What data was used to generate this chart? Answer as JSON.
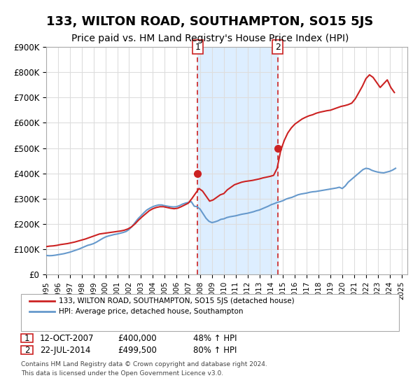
{
  "title": "133, WILTON ROAD, SOUTHAMPTON, SO15 5JS",
  "subtitle": "Price paid vs. HM Land Registry's House Price Index (HPI)",
  "title_fontsize": 13,
  "subtitle_fontsize": 10,
  "xlabel": "",
  "ylabel": "",
  "ylim": [
    0,
    900000
  ],
  "yticks": [
    0,
    100000,
    200000,
    300000,
    400000,
    500000,
    600000,
    700000,
    800000,
    900000
  ],
  "ytick_labels": [
    "£0",
    "£100K",
    "£200K",
    "£300K",
    "£400K",
    "£500K",
    "£600K",
    "£700K",
    "£800K",
    "£900K"
  ],
  "xlim_start": 1995.0,
  "xlim_end": 2025.5,
  "xtick_years": [
    1995,
    1996,
    1997,
    1998,
    1999,
    2000,
    2001,
    2002,
    2003,
    2004,
    2005,
    2006,
    2007,
    2008,
    2009,
    2010,
    2011,
    2012,
    2013,
    2014,
    2015,
    2016,
    2017,
    2018,
    2019,
    2020,
    2021,
    2022,
    2023,
    2024,
    2025
  ],
  "hpi_color": "#6699cc",
  "price_color": "#cc2222",
  "marker_color": "#cc2222",
  "grid_color": "#dddddd",
  "background_color": "#ffffff",
  "shade_color": "#ddeeff",
  "sale1_x": 2007.78,
  "sale1_y": 400000,
  "sale1_label": "1",
  "sale1_date": "12-OCT-2007",
  "sale1_price": "£400,000",
  "sale1_hpi": "48% ↑ HPI",
  "sale2_x": 2014.55,
  "sale2_y": 499500,
  "sale2_label": "2",
  "sale2_date": "22-JUL-2014",
  "sale2_price": "£499,500",
  "sale2_hpi": "80% ↑ HPI",
  "legend_line1": "133, WILTON ROAD, SOUTHAMPTON, SO15 5JS (detached house)",
  "legend_line2": "HPI: Average price, detached house, Southampton",
  "footer1": "Contains HM Land Registry data © Crown copyright and database right 2024.",
  "footer2": "This data is licensed under the Open Government Licence v3.0.",
  "hpi_data_x": [
    1995.0,
    1995.25,
    1995.5,
    1995.75,
    1996.0,
    1996.25,
    1996.5,
    1996.75,
    1997.0,
    1997.25,
    1997.5,
    1997.75,
    1998.0,
    1998.25,
    1998.5,
    1998.75,
    1999.0,
    1999.25,
    1999.5,
    1999.75,
    2000.0,
    2000.25,
    2000.5,
    2000.75,
    2001.0,
    2001.25,
    2001.5,
    2001.75,
    2002.0,
    2002.25,
    2002.5,
    2002.75,
    2003.0,
    2003.25,
    2003.5,
    2003.75,
    2004.0,
    2004.25,
    2004.5,
    2004.75,
    2005.0,
    2005.25,
    2005.5,
    2005.75,
    2006.0,
    2006.25,
    2006.5,
    2006.75,
    2007.0,
    2007.25,
    2007.5,
    2007.75,
    2008.0,
    2008.25,
    2008.5,
    2008.75,
    2009.0,
    2009.25,
    2009.5,
    2009.75,
    2010.0,
    2010.25,
    2010.5,
    2010.75,
    2011.0,
    2011.25,
    2011.5,
    2011.75,
    2012.0,
    2012.25,
    2012.5,
    2012.75,
    2013.0,
    2013.25,
    2013.5,
    2013.75,
    2014.0,
    2014.25,
    2014.5,
    2014.75,
    2015.0,
    2015.25,
    2015.5,
    2015.75,
    2016.0,
    2016.25,
    2016.5,
    2016.75,
    2017.0,
    2017.25,
    2017.5,
    2017.75,
    2018.0,
    2018.25,
    2018.5,
    2018.75,
    2019.0,
    2019.25,
    2019.5,
    2019.75,
    2020.0,
    2020.25,
    2020.5,
    2020.75,
    2021.0,
    2021.25,
    2021.5,
    2021.75,
    2022.0,
    2022.25,
    2022.5,
    2022.75,
    2023.0,
    2023.25,
    2023.5,
    2023.75,
    2024.0,
    2024.25,
    2024.5
  ],
  "hpi_data_y": [
    75000,
    74000,
    74500,
    76000,
    78000,
    80000,
    82000,
    85000,
    88000,
    92000,
    96000,
    100000,
    105000,
    110000,
    115000,
    118000,
    122000,
    128000,
    135000,
    142000,
    148000,
    152000,
    155000,
    158000,
    160000,
    163000,
    166000,
    170000,
    178000,
    190000,
    205000,
    220000,
    232000,
    244000,
    255000,
    262000,
    268000,
    272000,
    275000,
    275000,
    272000,
    270000,
    268000,
    267000,
    268000,
    272000,
    278000,
    282000,
    285000,
    288000,
    270000,
    268000,
    258000,
    240000,
    222000,
    210000,
    205000,
    208000,
    212000,
    218000,
    220000,
    225000,
    228000,
    230000,
    232000,
    235000,
    238000,
    240000,
    242000,
    245000,
    248000,
    252000,
    255000,
    260000,
    265000,
    270000,
    276000,
    280000,
    285000,
    288000,
    292000,
    298000,
    302000,
    305000,
    310000,
    315000,
    318000,
    320000,
    322000,
    325000,
    327000,
    328000,
    330000,
    332000,
    334000,
    336000,
    338000,
    340000,
    342000,
    345000,
    340000,
    350000,
    365000,
    375000,
    385000,
    395000,
    405000,
    415000,
    420000,
    418000,
    412000,
    408000,
    405000,
    403000,
    402000,
    405000,
    408000,
    413000,
    420000
  ],
  "price_data_x": [
    1995.0,
    1995.3,
    1995.6,
    1995.9,
    1996.2,
    1996.5,
    1996.8,
    1997.1,
    1997.4,
    1997.7,
    1998.0,
    1998.3,
    1998.6,
    1998.9,
    1999.2,
    1999.5,
    1999.8,
    2000.1,
    2000.4,
    2000.7,
    2001.0,
    2001.3,
    2001.6,
    2001.9,
    2002.2,
    2002.5,
    2002.8,
    2003.1,
    2003.4,
    2003.7,
    2004.0,
    2004.3,
    2004.6,
    2004.9,
    2005.2,
    2005.5,
    2005.8,
    2006.1,
    2006.4,
    2006.7,
    2007.0,
    2007.3,
    2007.6,
    2007.9,
    2008.2,
    2008.5,
    2008.8,
    2009.1,
    2009.4,
    2009.7,
    2010.0,
    2010.3,
    2010.6,
    2010.9,
    2011.2,
    2011.5,
    2011.8,
    2012.1,
    2012.4,
    2012.7,
    2013.0,
    2013.3,
    2013.6,
    2013.9,
    2014.2,
    2014.5,
    2014.8,
    2015.1,
    2015.4,
    2015.7,
    2016.0,
    2016.3,
    2016.6,
    2016.9,
    2017.2,
    2017.5,
    2017.8,
    2018.1,
    2018.4,
    2018.7,
    2019.0,
    2019.3,
    2019.6,
    2019.9,
    2020.2,
    2020.5,
    2020.8,
    2021.1,
    2021.4,
    2021.7,
    2022.0,
    2022.3,
    2022.6,
    2022.9,
    2023.2,
    2023.5,
    2023.8,
    2024.1,
    2024.4
  ],
  "price_data_y": [
    110000,
    112000,
    113000,
    115000,
    118000,
    120000,
    122000,
    125000,
    128000,
    132000,
    136000,
    140000,
    145000,
    150000,
    155000,
    160000,
    162000,
    164000,
    166000,
    168000,
    170000,
    172000,
    175000,
    180000,
    188000,
    200000,
    215000,
    228000,
    240000,
    252000,
    260000,
    265000,
    268000,
    268000,
    265000,
    262000,
    260000,
    262000,
    268000,
    275000,
    282000,
    300000,
    320000,
    340000,
    330000,
    310000,
    290000,
    295000,
    305000,
    315000,
    320000,
    335000,
    345000,
    355000,
    360000,
    365000,
    368000,
    370000,
    372000,
    375000,
    378000,
    382000,
    385000,
    388000,
    392000,
    420000,
    490000,
    530000,
    560000,
    580000,
    595000,
    605000,
    615000,
    622000,
    628000,
    632000,
    638000,
    642000,
    645000,
    648000,
    650000,
    655000,
    660000,
    665000,
    668000,
    672000,
    678000,
    695000,
    720000,
    745000,
    775000,
    790000,
    780000,
    760000,
    740000,
    755000,
    770000,
    740000,
    720000
  ]
}
